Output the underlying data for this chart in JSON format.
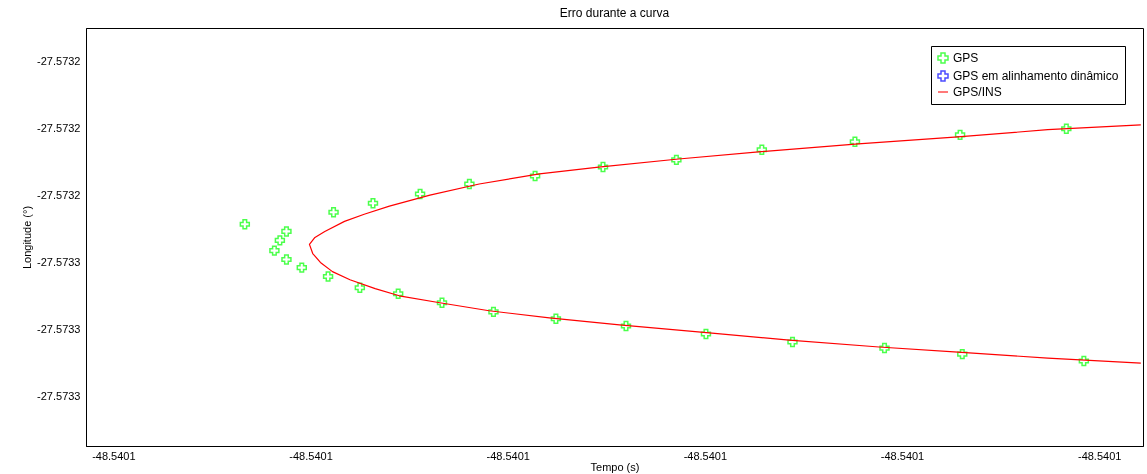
{
  "chart_data": {
    "type": "scatter",
    "title": "Erro durante a curva",
    "xlabel": "Tempo (s)",
    "ylabel": "Longitude (°)",
    "xlim": [
      -48.5401475,
      -48.540051
    ],
    "ylim": [
      -27.573333,
      -27.573146
    ],
    "xticks": [
      {
        "value": -48.540145,
        "label": "-48.5401"
      },
      {
        "value": -48.540127,
        "label": "-48.5401"
      },
      {
        "value": -48.540109,
        "label": "-48.5401"
      },
      {
        "value": -48.540091,
        "label": "-48.5401"
      },
      {
        "value": -48.540073,
        "label": "-48.5401"
      },
      {
        "value": -48.540055,
        "label": "-48.5401"
      }
    ],
    "yticks": [
      {
        "value": -27.573161,
        "label": "-27.5732"
      },
      {
        "value": -27.573191,
        "label": "-27.5732"
      },
      {
        "value": -27.573221,
        "label": "-27.5732"
      },
      {
        "value": -27.573251,
        "label": "-27.5733"
      },
      {
        "value": -27.573281,
        "label": "-27.5733"
      },
      {
        "value": -27.573311,
        "label": "-27.5733"
      }
    ],
    "grid": false,
    "legend": "top right",
    "series": [
      {
        "name": "GPS",
        "marker": "cross",
        "color": "#00ff00",
        "x": [
          -48.540133,
          -48.5401292,
          -48.5401298,
          -48.5401303,
          -48.5401292,
          -48.5401278,
          -48.5401254,
          -48.5401225,
          -48.540119,
          -48.540115,
          -48.5401103,
          -48.5401046,
          -48.5400982,
          -48.5400909,
          -48.540083,
          -48.5400746,
          -48.5400675,
          -48.5400564,
          -48.5401249,
          -48.5401213,
          -48.540117,
          -48.5401125,
          -48.5401065,
          -48.5401003,
          -48.5400936,
          -48.5400858,
          -48.5400773,
          -48.5400677,
          -48.540058
        ],
        "values": [
          -27.5732338,
          -27.573237,
          -27.573241,
          -27.5732456,
          -27.5732496,
          -27.5732532,
          -27.5732572,
          -27.5732622,
          -27.5732649,
          -27.5732689,
          -27.573273,
          -27.5732761,
          -27.5732793,
          -27.5732829,
          -27.5732865,
          -27.5732892,
          -27.5732919,
          -27.573295,
          -27.5732284,
          -27.5732244,
          -27.5732203,
          -27.5732158,
          -27.5732122,
          -27.5732082,
          -27.573205,
          -27.5732005,
          -27.5731969,
          -27.5731938,
          -27.5731911
        ]
      },
      {
        "name": "GPS em alinhamento dinâmico",
        "marker": "cross",
        "color": "#0000ff"
      },
      {
        "name": "GPS/INS",
        "type": "line",
        "line_style": "solid",
        "color": "#ff0000",
        "x": [
          -48.5400512,
          -48.5400597,
          -48.5400679,
          -48.540077,
          -48.5400861,
          -48.5400934,
          -48.5401007,
          -48.5401061,
          -48.5401116,
          -48.5401161,
          -48.5401198,
          -48.5401221,
          -48.5401239,
          -48.5401257,
          -48.5401266,
          -48.5401271,
          -48.5401268,
          -48.5401261,
          -48.540125,
          -48.5401234,
          -48.5401211,
          -48.5401189,
          -48.5401152,
          -48.5401107,
          -48.5401052,
          -48.5400988,
          -48.5400906,
          -48.5400833,
          -48.5400751,
          -48.5400679,
          -48.5400597,
          -48.5400512
        ],
        "values": [
          -27.5731893,
          -27.5731915,
          -27.5731947,
          -27.5731978,
          -27.5732014,
          -27.5732046,
          -27.5732082,
          -27.5732113,
          -27.5732158,
          -27.5732208,
          -27.5732257,
          -27.5732293,
          -27.5732325,
          -27.573237,
          -27.5732397,
          -27.5732428,
          -27.5732469,
          -27.5732509,
          -27.573255,
          -27.5732586,
          -27.5732626,
          -27.5732658,
          -27.5732689,
          -27.5732725,
          -27.5732757,
          -27.5732788,
          -27.5732824,
          -27.5732856,
          -27.5732887,
          -27.573291,
          -27.5732937,
          -27.5732959
        ]
      }
    ]
  }
}
